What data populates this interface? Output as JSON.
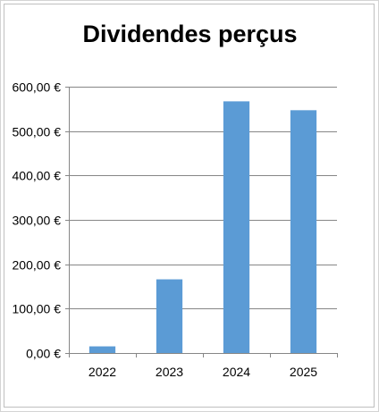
{
  "chart_data": {
    "type": "bar",
    "title": "Dividendes perçus",
    "xlabel": "",
    "ylabel": "",
    "categories": [
      "2022",
      "2023",
      "2024",
      "2025"
    ],
    "values": [
      15,
      166,
      567,
      547
    ],
    "ylim": [
      0,
      600
    ],
    "yticks": [
      0,
      100,
      200,
      300,
      400,
      500,
      600
    ],
    "ytick_labels": [
      "0,00 €",
      "100,00 €",
      "200,00 €",
      "300,00 €",
      "400,00 €",
      "500,00 €",
      "600,00 €"
    ],
    "grid": true,
    "legend": "none",
    "bar_color": "#5b9bd5",
    "gridline_color": "#868686"
  }
}
